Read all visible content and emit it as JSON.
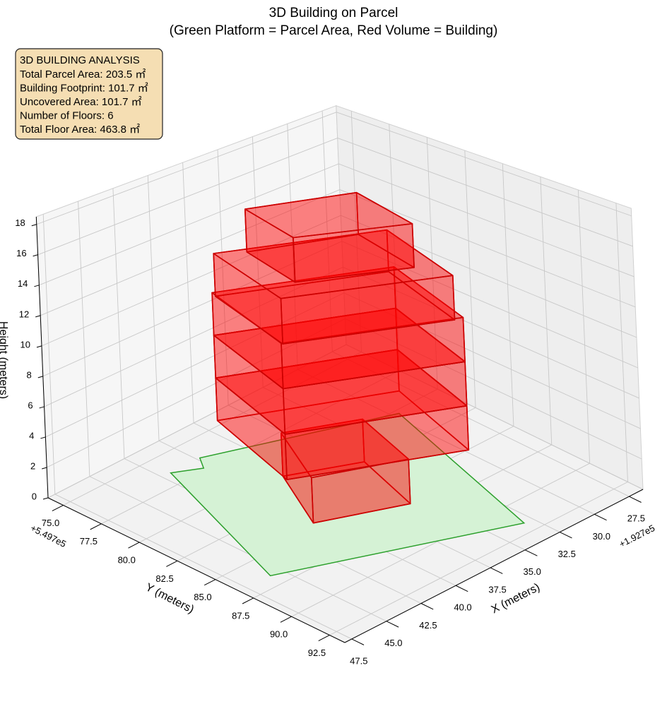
{
  "chart_data": {
    "type": "polygon3d",
    "title": "3D Building on Parcel",
    "subtitle": "(Green Platform = Parcel Area, Red Volume = Building)",
    "annotation_title": "3D BUILDING ANALYSIS",
    "annotation_lines": [
      "Total Parcel Area: 203.5 ㎡",
      "Building Footprint: 101.7 ㎡",
      "Uncovered Area: 101.7 ㎡",
      "Number of Floors: 6",
      "Total Floor Area: 463.8 ㎡"
    ],
    "xlabel": "X (meters)",
    "ylabel": "Y (meters)",
    "zlabel": "Height (meters)",
    "x_offset": "+1.927e5",
    "y_offset": "+5.497e5",
    "xlim": [
      26.5,
      48
    ],
    "ylim": [
      74,
      93.5
    ],
    "zlim": [
      0,
      18.5
    ],
    "xticks": [
      27.5,
      {
        "value": 30,
        "label": "30.0"
      },
      32.5,
      {
        "value": 35,
        "label": "35.0"
      },
      37.5,
      {
        "value": 40,
        "label": "40.0"
      },
      42.5,
      {
        "value": 45,
        "label": "45.0"
      },
      47.5
    ],
    "yticks": [
      {
        "value": 75,
        "label": "75.0"
      },
      77.5,
      {
        "value": 80,
        "label": "80.0"
      },
      82.5,
      {
        "value": 85,
        "label": "85.0"
      },
      87.5,
      {
        "value": 90,
        "label": "90.0"
      },
      92.5
    ],
    "zticks": [
      0,
      2,
      4,
      6,
      8,
      10,
      12,
      14,
      16,
      18
    ],
    "grid": true,
    "parcel": {
      "x": [
        41.9,
        40.4,
        39.8,
        29.6,
        33.1,
        45.8
      ],
      "y": [
        76.5,
        77.3,
        76.5,
        80.3,
        91.7,
        86.6
      ],
      "color": "#2ca02c",
      "fill": "#d5f2d5"
    },
    "building_color": "#ff0000",
    "building_edge": "#cc0000",
    "volumes": [
      {
        "x": [
          38.2,
          34.3,
          35.7,
          40.5
        ],
        "y": [
          80.5,
          82.3,
          86.6,
          84.6
        ],
        "z": [
          0,
          2.9
        ]
      },
      {
        "x": [
          39.5,
          30.9,
          32.9,
          41.5
        ],
        "y": [
          77.5,
          81.6,
          88.0,
          83.9
        ],
        "z": [
          2.9,
          5.8
        ]
      },
      {
        "x": [
          39.5,
          30.9,
          32.9,
          41.5
        ],
        "y": [
          77.5,
          81.6,
          88.0,
          83.9
        ],
        "z": [
          5.8,
          8.7
        ]
      },
      {
        "x": [
          39.5,
          30.9,
          32.9,
          41.5
        ],
        "y": [
          77.5,
          81.6,
          88.0,
          83.9
        ],
        "z": [
          8.7,
          11.6
        ]
      },
      {
        "x": [
          39.7,
          31.5,
          33.4,
          41.5
        ],
        "y": [
          77.9,
          81.8,
          87.9,
          84.0
        ],
        "z": [
          11.6,
          14.5
        ]
      },
      {
        "x": [
          38.4,
          32.9,
          34.0,
          39.5
        ],
        "y": [
          78.9,
          81.2,
          85.9,
          83.1
        ],
        "z": [
          14.5,
          17.4
        ]
      }
    ]
  }
}
